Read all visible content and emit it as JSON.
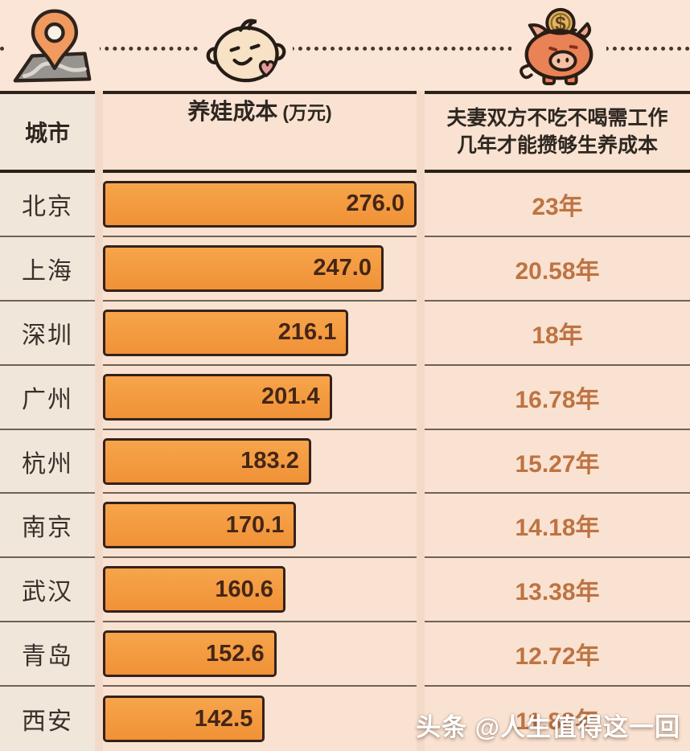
{
  "theme": {
    "page_bg": "#F3DAC8",
    "band_bg": "#FAE5D6",
    "cell_bg": "#F9E2D1",
    "city_col_bg": "#F0E7DA",
    "bar_fill_top": "#F7A54B",
    "bar_fill_bottom": "#F09137",
    "bar_border": "#35211A",
    "bar_value_color": "#452616",
    "year_color": "#BE7342",
    "city_color": "#37312B",
    "header_color": "#2E2721",
    "thick_line": "#2C2219",
    "thin_line": "#6F6156",
    "dot_line": "#46382E",
    "watermark_color": "#FFFFFF"
  },
  "icons": {
    "left": "location-pin-map-icon",
    "middle": "baby-face-icon",
    "right": "piggy-bank-icon"
  },
  "header": {
    "city_label": "城市",
    "cost_label": "养娃成本",
    "cost_unit": "(万元)",
    "years_label_line1": "夫妻双方不吃不喝需工作",
    "years_label_line2": "几年才能攒够生养成本"
  },
  "bar_scale_max": 276,
  "rows": [
    {
      "city": "北京",
      "cost": "276.0",
      "years": "23年"
    },
    {
      "city": "上海",
      "cost": "247.0",
      "years": "20.58年"
    },
    {
      "city": "深圳",
      "cost": "216.1",
      "years": "18年"
    },
    {
      "city": "广州",
      "cost": "201.4",
      "years": "16.78年"
    },
    {
      "city": "杭州",
      "cost": "183.2",
      "years": "15.27年"
    },
    {
      "city": "南京",
      "cost": "170.1",
      "years": "14.18年"
    },
    {
      "city": "武汉",
      "cost": "160.6",
      "years": "13.38年"
    },
    {
      "city": "青岛",
      "cost": "152.6",
      "years": "12.72年"
    },
    {
      "city": "西安",
      "cost": "142.5",
      "years": "11.88年"
    }
  ],
  "watermark": "头条 @人生值得这一回",
  "chart_data": {
    "type": "bar",
    "orientation": "horizontal",
    "title": "",
    "categories": [
      "北京",
      "上海",
      "深圳",
      "广州",
      "杭州",
      "南京",
      "武汉",
      "青岛",
      "西安"
    ],
    "series": [
      {
        "name": "养娃成本(万元)",
        "values": [
          276.0,
          247.0,
          216.1,
          201.4,
          183.2,
          170.1,
          160.6,
          152.6,
          142.5
        ]
      },
      {
        "name": "夫妻双方不吃不喝需工作几年才能攒够生养成本(年)",
        "values": [
          23,
          20.58,
          18,
          16.78,
          15.27,
          14.18,
          13.38,
          12.72,
          11.88
        ]
      }
    ],
    "xlim": [
      0,
      276
    ],
    "value_labels": true,
    "legend": false,
    "grid": false
  }
}
